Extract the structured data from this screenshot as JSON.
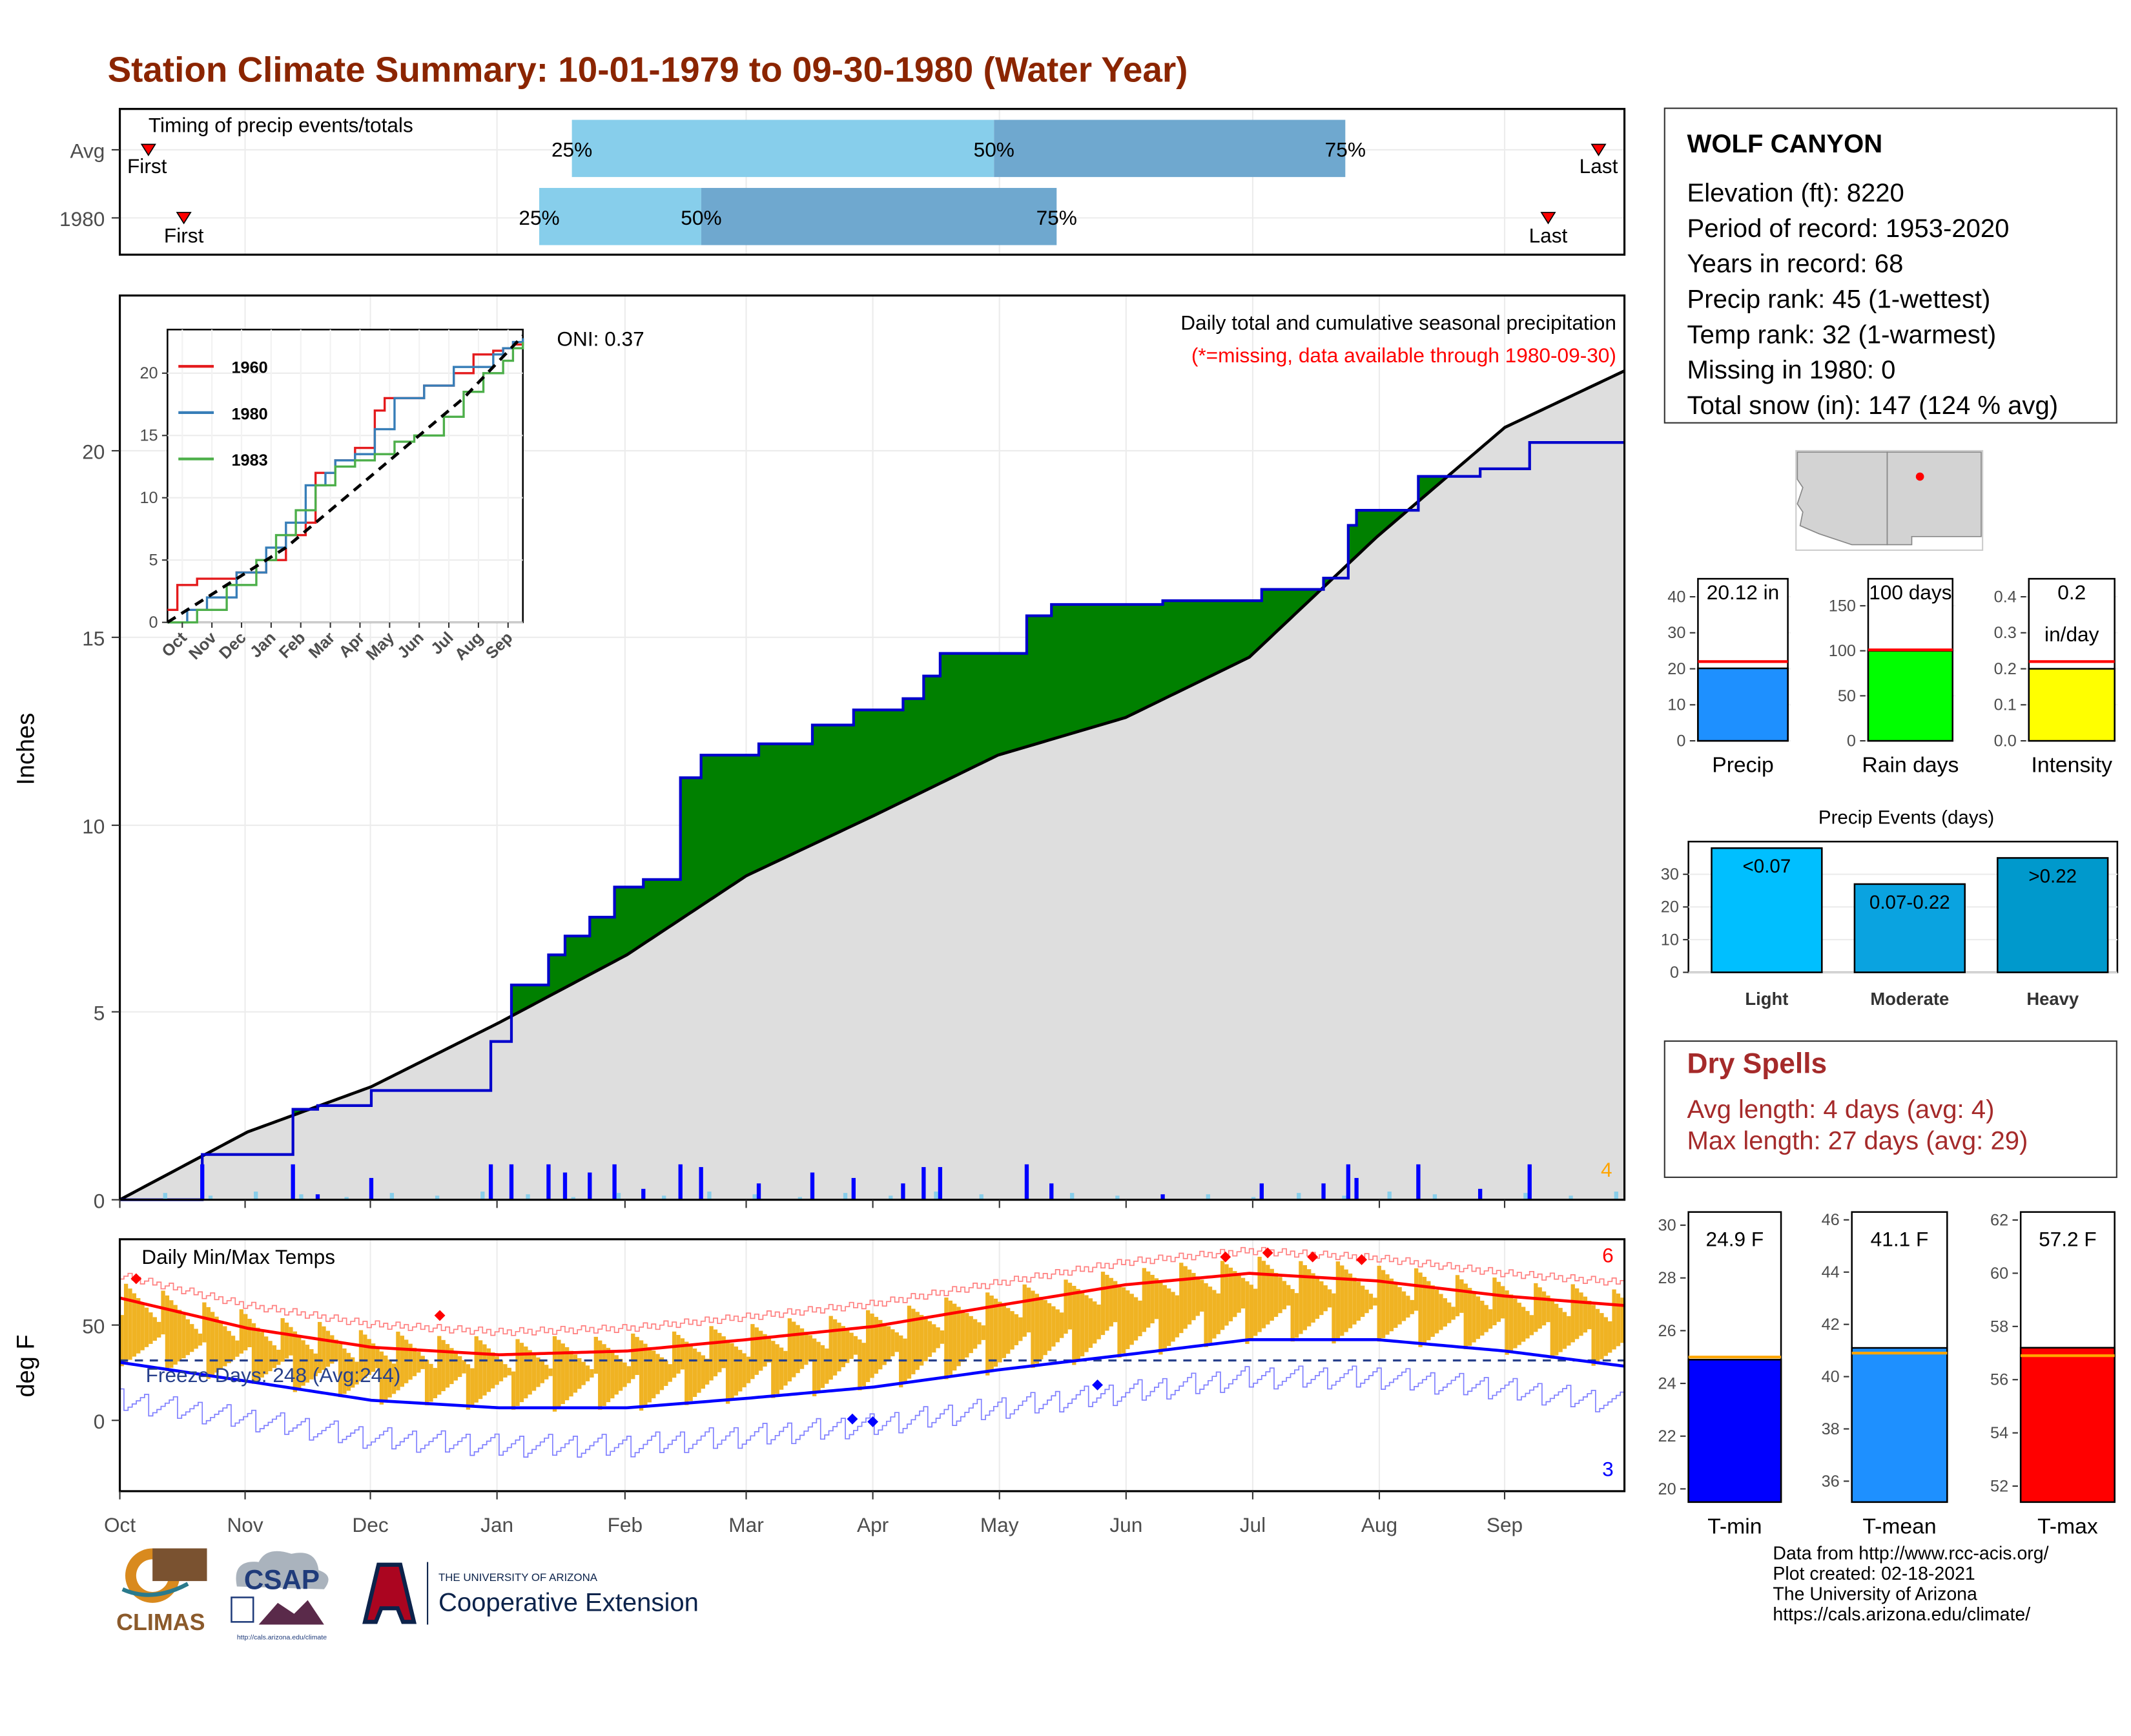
{
  "title": "Station Climate Summary: 10-01-1979 to 09-30-1980 (Water Year)",
  "timing_panel": {
    "label": "Timing of precip events/totals",
    "rows": [
      {
        "name": "Avg",
        "first_label": "First",
        "last_label": "Last",
        "p25": "25%",
        "p50": "50%",
        "p75": "75%"
      },
      {
        "name": "1980",
        "first_label": "First",
        "last_label": "Last",
        "p25": "25%",
        "p50": "50%",
        "p75": "75%"
      }
    ]
  },
  "precip_panel": {
    "ylabel": "Inches",
    "header": "Daily total and cumulative seasonal precipitation",
    "missing_note": "(*=missing, data available through 1980-09-30)",
    "oni": "ONI: 0.37",
    "count_label": "4",
    "colors": {
      "above": "#008000",
      "below": "#8b5a00",
      "avg_fill": "#dedede",
      "obs": "#0000cc"
    }
  },
  "inset": {
    "series": [
      {
        "name": "1960",
        "color": "#e41a1c"
      },
      {
        "name": "1980",
        "color": "#377eb8"
      },
      {
        "name": "1983",
        "color": "#4daf4a"
      }
    ],
    "xticks": [
      "Oct",
      "Nov",
      "Dec",
      "Jan",
      "Feb",
      "Mar",
      "Apr",
      "May",
      "Jun",
      "Jul",
      "Aug",
      "Sep"
    ],
    "yticks": [
      0,
      5,
      10,
      15,
      20
    ]
  },
  "temp_panel": {
    "ylabel": "deg F",
    "label": "Daily Min/Max Temps",
    "freeze": "Freeze Days: 248 (Avg:244)",
    "count_high": "6",
    "count_low": "3"
  },
  "months": [
    "Oct",
    "Nov",
    "Dec",
    "Jan",
    "Feb",
    "Mar",
    "Apr",
    "May",
    "Jun",
    "Jul",
    "Aug",
    "Sep"
  ],
  "station": {
    "name": "WOLF CANYON",
    "elevation": "Elevation (ft): 8220",
    "period": "Period of record: 1953-2020",
    "years": "Years in record: 68",
    "precip_rank": "Precip rank: 45 (1-wettest)",
    "temp_rank": "Temp rank: 32 (1-warmest)",
    "missing": "Missing in 1980: 0",
    "snow": "Total snow (in): 147 (124 % avg)"
  },
  "mini_bars": [
    {
      "name": "Precip",
      "label": "20.12 in",
      "value": 20.12,
      "avg": 22,
      "ymax": 45,
      "ticks": [
        0,
        10,
        20,
        30,
        40
      ],
      "color": "#1e90ff"
    },
    {
      "name": "Rain days",
      "label": "100 days",
      "value": 100,
      "avg": 101,
      "ymax": 180,
      "ticks": [
        0,
        50,
        100,
        150
      ],
      "color": "#00ff00"
    },
    {
      "name": "Intensity",
      "label": "0.2",
      "label2": "in/day",
      "value": 0.2,
      "avg": 0.22,
      "ymax": 0.45,
      "ticks": [
        "0.0",
        "0.1",
        "0.2",
        "0.3",
        "0.4"
      ],
      "color": "#ffff00"
    }
  ],
  "precip_events": {
    "title": "Precip Events (days)",
    "categories": [
      "Light",
      "Moderate",
      "Heavy"
    ],
    "labels": [
      "<0.07",
      "0.07-0.22",
      ">0.22"
    ],
    "values": [
      38,
      27,
      35
    ],
    "colors": [
      "#00bfff",
      "#0aa3e0",
      "#0099cc"
    ],
    "ticks": [
      0,
      10,
      20,
      30
    ]
  },
  "dry_spells": {
    "title": "Dry Spells",
    "avg": "Avg length: 4 days (avg: 4)",
    "max": "Max length: 27 days (avg: 29)"
  },
  "temp_bars": [
    {
      "name": "T-min",
      "label": "24.9 F",
      "value": 24.9,
      "avg": 25.0,
      "ymin": 19.5,
      "ymax": 30.5,
      "ticks": [
        20,
        22,
        24,
        26,
        28,
        30
      ],
      "color": "#0000ff"
    },
    {
      "name": "T-mean",
      "label": "41.1 F",
      "value": 41.1,
      "avg": 40.9,
      "ymin": 35.2,
      "ymax": 46.3,
      "ticks": [
        36,
        38,
        40,
        42,
        44,
        46
      ],
      "color": "#1e90ff"
    },
    {
      "name": "T-max",
      "label": "57.2 F",
      "value": 57.2,
      "avg": 56.9,
      "ymin": 51.4,
      "ymax": 62.3,
      "ticks": [
        52,
        54,
        56,
        58,
        60,
        62
      ],
      "color": "#ff0000"
    }
  ],
  "credits": [
    "Data from http://www.rcc-acis.org/",
    "Plot created: 02-18-2021",
    "The University of Arizona",
    "https://cals.arizona.edu/climate/"
  ],
  "logos": {
    "climas": "CLIMAS",
    "csap": "CSAP",
    "csap_url": "http://cals.arizona.edu/climate",
    "ua_small": "THE UNIVERSITY OF ARIZONA",
    "ua_big": "Cooperative Extension"
  },
  "chart_data": [
    {
      "type": "area",
      "title": "Daily total and cumulative seasonal precipitation",
      "ylabel": "Inches",
      "ylim": [
        0,
        24
      ],
      "x_unit": "day of water year (0 = Oct 1)",
      "avg_cumulative": {
        "x": [
          0,
          31,
          61,
          92,
          123,
          152,
          183,
          213,
          244,
          274,
          305,
          336,
          365
        ],
        "y": [
          0,
          1.8,
          3.0,
          4.7,
          6.5,
          8.6,
          10.2,
          11.8,
          12.8,
          14.4,
          17.6,
          20.5,
          22.0
        ]
      },
      "obs_cumulative": {
        "x": [
          0,
          20,
          31,
          42,
          48,
          61,
          90,
          95,
          104,
          108,
          114,
          120,
          127,
          136,
          141,
          155,
          168,
          178,
          190,
          195,
          199,
          210,
          220,
          226,
          253,
          277,
          292,
          298,
          300,
          315,
          330,
          342,
          345,
          353,
          365
        ],
        "y": [
          0,
          1.2,
          1.2,
          2.4,
          2.5,
          2.9,
          4.2,
          5.7,
          6.5,
          7.0,
          7.5,
          8.3,
          8.5,
          11.2,
          11.8,
          12.1,
          12.6,
          13.0,
          13.3,
          13.9,
          14.5,
          14.5,
          15.5,
          15.8,
          15.9,
          16.2,
          16.5,
          17.9,
          18.3,
          19.2,
          19.4,
          20.1,
          20.1,
          20.1,
          20.1
        ]
      }
    },
    {
      "type": "line",
      "title": "Daily Min/Max Temps",
      "ylabel": "deg F",
      "ylim": [
        -36,
        97
      ],
      "x_unit": "day of water year (0 = Oct 1)",
      "avg_max": {
        "x": [
          0,
          31,
          61,
          92,
          123,
          152,
          183,
          213,
          244,
          274,
          305,
          336,
          365
        ],
        "y": [
          66,
          50,
          40,
          36,
          38,
          44,
          51,
          62,
          73,
          79,
          75,
          67,
          62
        ]
      },
      "avg_min": {
        "x": [
          0,
          31,
          61,
          92,
          123,
          152,
          183,
          213,
          244,
          274,
          305,
          336,
          365
        ],
        "y": [
          32,
          22,
          12,
          8,
          8,
          13,
          19,
          28,
          36,
          44,
          44,
          38,
          30
        ]
      },
      "freeze_line": 32
    },
    {
      "type": "line",
      "title": "",
      "xticks": [
        "Oct",
        "Nov",
        "Dec",
        "Jan",
        "Feb",
        "Mar",
        "Apr",
        "May",
        "Jun",
        "Jul",
        "Aug",
        "Sep"
      ],
      "ylim": [
        0,
        23.5
      ],
      "series": [
        {
          "name": "1960",
          "x": [
            0,
            1,
            3,
            7,
            10,
            12,
            14,
            15,
            17,
            19,
            21,
            22,
            26,
            29,
            31,
            33,
            34,
            35,
            36
          ],
          "y": [
            1,
            3,
            3.5,
            4,
            5,
            7,
            8,
            12,
            13,
            14,
            17,
            18,
            19,
            20,
            21.5,
            21.8,
            22,
            22.3,
            22.5
          ]
        },
        {
          "name": "1980",
          "x": [
            0,
            2,
            4,
            7,
            10,
            12,
            14,
            16,
            17,
            19,
            21,
            23,
            26,
            29,
            31,
            33,
            34,
            35,
            36
          ],
          "y": [
            0,
            1,
            2,
            4,
            6,
            8,
            11,
            12,
            13,
            13.5,
            15.5,
            18,
            19,
            20.5,
            20.5,
            21.5,
            22,
            22.5,
            22.8
          ]
        },
        {
          "name": "1983",
          "x": [
            0,
            3,
            6,
            9,
            11,
            13,
            15,
            17,
            19,
            21,
            23,
            25,
            28,
            30,
            32,
            34,
            35,
            36
          ],
          "y": [
            0,
            1,
            3,
            5,
            7,
            9,
            11,
            12.5,
            13,
            13.5,
            14.5,
            15,
            16.5,
            18.5,
            20,
            21,
            22,
            22.5
          ]
        },
        {
          "name": "avg",
          "x": [
            0,
            6,
            12,
            18,
            24,
            30,
            36
          ],
          "y": [
            0,
            3,
            6,
            10,
            14,
            18,
            23
          ]
        }
      ]
    },
    {
      "type": "bar",
      "categories": [
        "Precip"
      ],
      "values": [
        20.12
      ],
      "ylim": [
        0,
        45
      ]
    },
    {
      "type": "bar",
      "categories": [
        "Rain days"
      ],
      "values": [
        100
      ],
      "ylim": [
        0,
        180
      ]
    },
    {
      "type": "bar",
      "categories": [
        "Intensity"
      ],
      "values": [
        0.2
      ],
      "ylim": [
        0,
        0.45
      ]
    },
    {
      "type": "bar",
      "title": "Precip Events (days)",
      "categories": [
        "Light",
        "Moderate",
        "Heavy"
      ],
      "values": [
        38,
        27,
        35
      ],
      "ylim": [
        0,
        40
      ]
    },
    {
      "type": "bar",
      "categories": [
        "T-min"
      ],
      "values": [
        24.9
      ],
      "ylim": [
        19.5,
        30.5
      ]
    },
    {
      "type": "bar",
      "categories": [
        "T-mean"
      ],
      "values": [
        41.1
      ],
      "ylim": [
        35.2,
        46.3
      ]
    },
    {
      "type": "bar",
      "categories": [
        "T-max"
      ],
      "values": [
        57.2
      ],
      "ylim": [
        51.4,
        62.3
      ]
    }
  ]
}
